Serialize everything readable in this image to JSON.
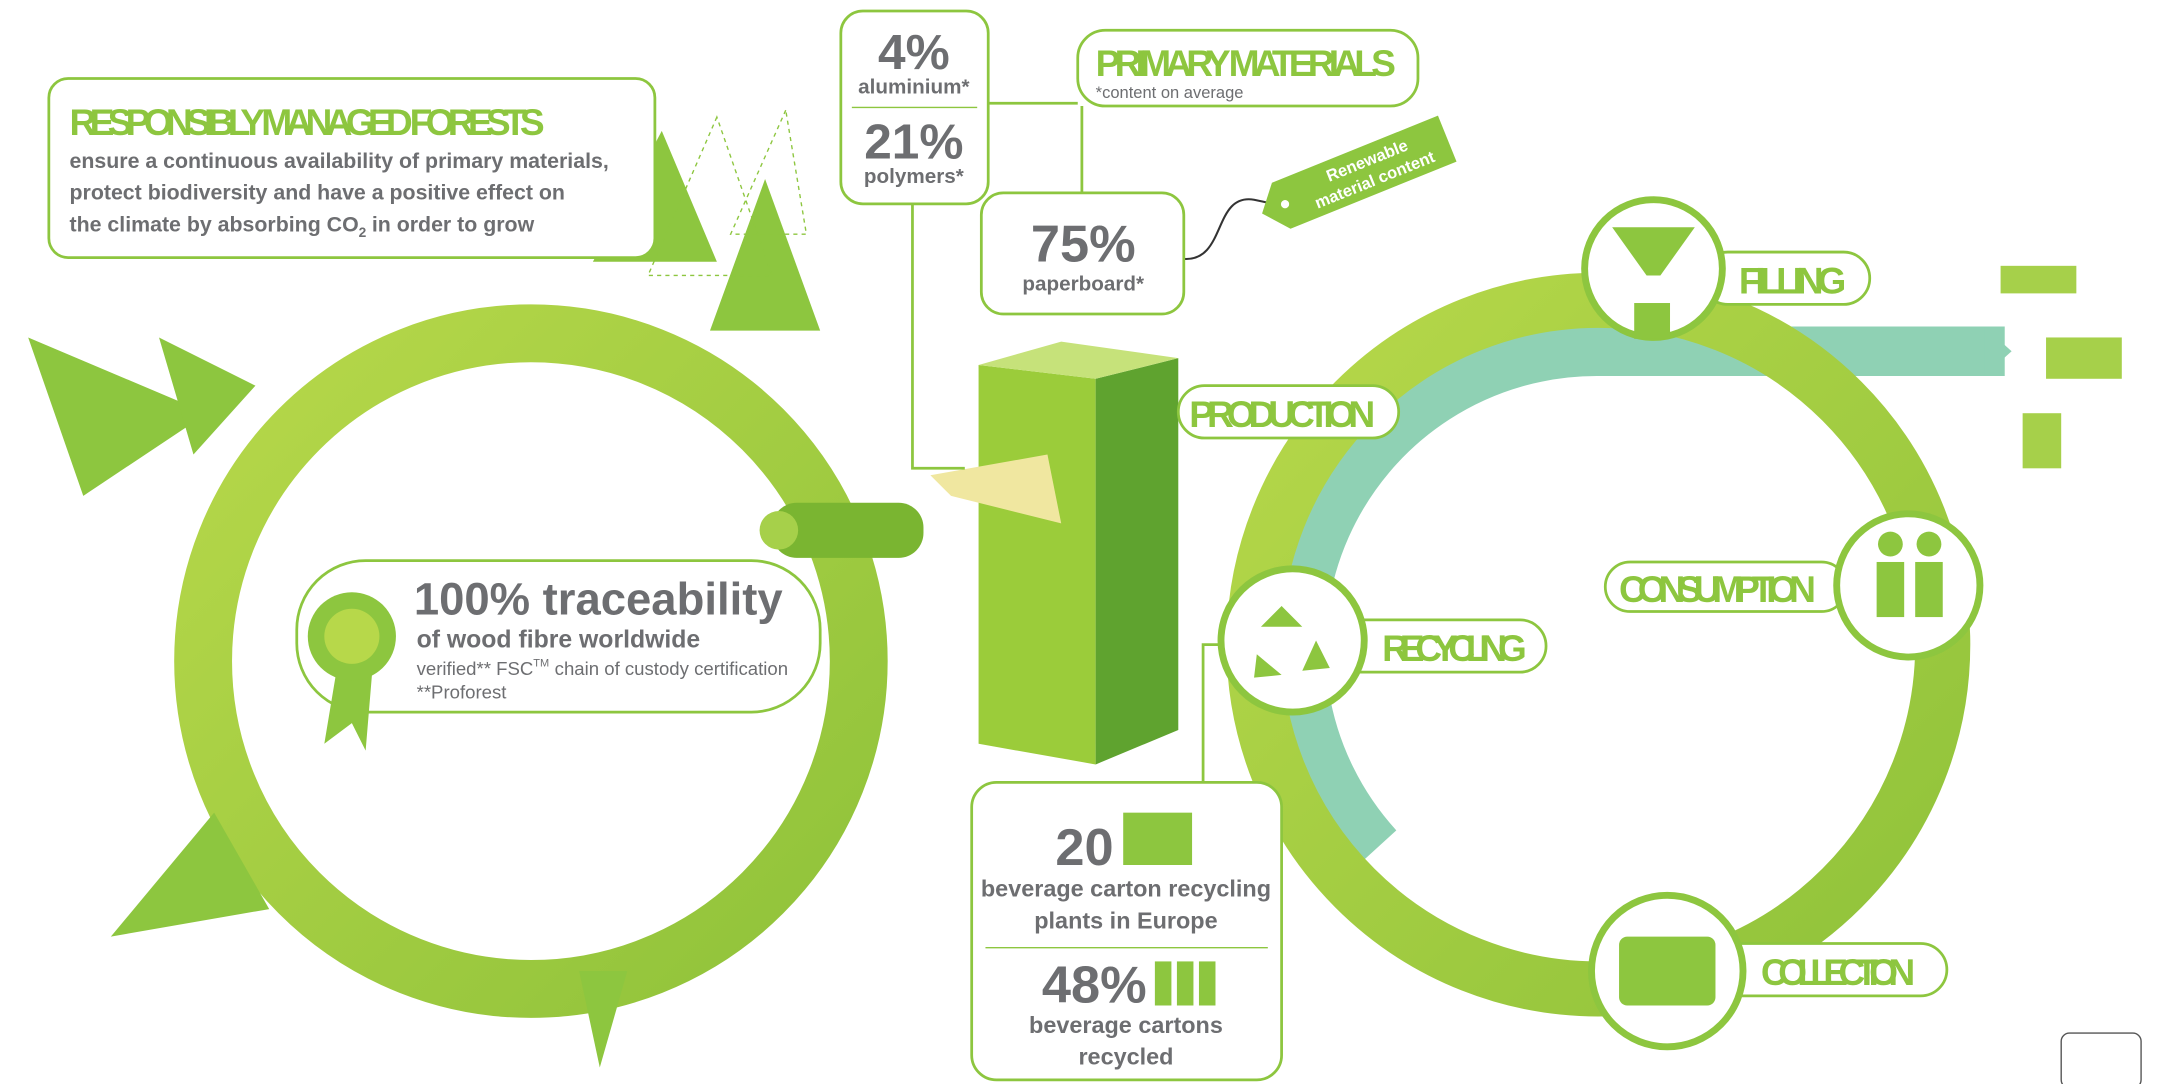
{
  "forests": {
    "title": "RESPONSIBLY MANAGED FORESTS",
    "lines": [
      "ensure a continuous availability of primary materials,",
      "protect biodiversity and have a positive effect on",
      "the climate by absorbing CO"
    ],
    "subscript": "2",
    "line_end": "in order to grow"
  },
  "materials": {
    "title": "PRIMARY MATERIALS",
    "note": "*content on average",
    "aluminium": {
      "value": "4%",
      "label": "aluminium*"
    },
    "polymers": {
      "value": "21%",
      "label": "polymers*"
    },
    "paperboard": {
      "value": "75%",
      "label": "paperboard*"
    },
    "tag": [
      "Renewable",
      "material content"
    ]
  },
  "traceability": {
    "headline": "100% traceability",
    "subline": "of wood fibre worldwide",
    "note_start": "verified** FSC",
    "note_tm": "TM",
    "note_end": "chain of custody certification",
    "source": "**Proforest"
  },
  "stages": {
    "production": "PRODUCTION",
    "filling": "FILLING",
    "consumption": "CONSUMPTION",
    "recycling": "RECYCLING",
    "collection": "COLLECTION"
  },
  "recycling_stats": {
    "plants_value": "20",
    "plants_lines": [
      "beverage carton recycling",
      "plants in Europe"
    ],
    "rate_value": "48%",
    "rate_lines": [
      "beverage cartons",
      "recycled"
    ]
  }
}
